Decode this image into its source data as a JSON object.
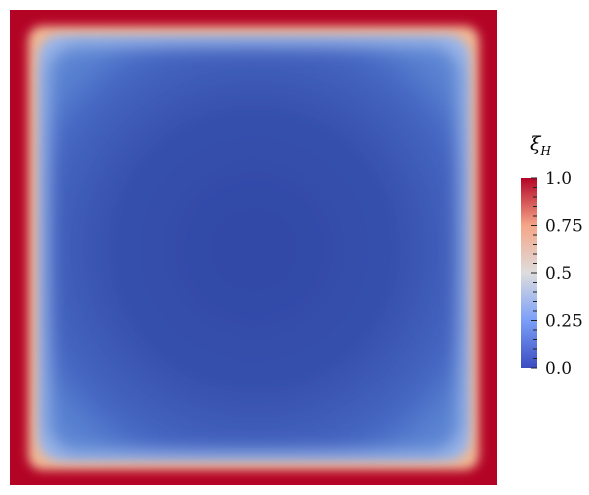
{
  "colormap": {
    "low": "#3b4cc0",
    "mid": "#dddddd",
    "high": "#b40426",
    "name": "cool-to-warm"
  },
  "legend": {
    "symbol": "ξ",
    "subscript": "H",
    "ticks": [
      "1.0",
      "0.75",
      "0.5",
      "0.25",
      "0.0"
    ],
    "range": [
      0.0,
      1.0
    ]
  }
}
